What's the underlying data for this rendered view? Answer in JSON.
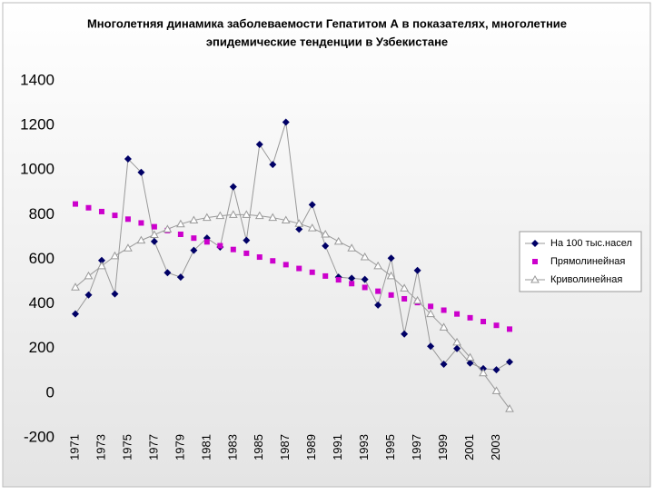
{
  "chart_data": {
    "type": "line",
    "title": [
      "Многолетняя динамика заболеваемости Гепатитом А в показателях, многолетние",
      "эпидемические тенденции в Узбекистане"
    ],
    "categories": [
      "1971",
      null,
      "1973",
      null,
      "1975",
      null,
      "1977",
      null,
      "1979",
      null,
      "1981",
      null,
      "1983",
      null,
      "1985",
      null,
      "1987",
      null,
      "1989",
      null,
      "1991",
      null,
      "1993",
      null,
      "1995",
      null,
      "1997",
      null,
      "1999",
      null,
      "2001",
      null,
      "2003",
      null
    ],
    "series": [
      {
        "name": "На 100 тыс.насел",
        "color": "#000066",
        "marker": "diamond",
        "line": true,
        "line_color": "#999999",
        "values": [
          355,
          440,
          595,
          445,
          1050,
          990,
          680,
          540,
          520,
          640,
          695,
          655,
          925,
          685,
          1115,
          1025,
          1215,
          735,
          845,
          660,
          520,
          515,
          510,
          395,
          605,
          265,
          550,
          210,
          130,
          200,
          135,
          110,
          105,
          140
        ]
      },
      {
        "name": "Прямолинейная",
        "color": "#cc00cc",
        "marker": "square",
        "line": false,
        "line_color": "#cc00cc",
        "values": [
          848,
          831,
          814,
          797,
          780,
          763,
          746,
          729,
          712,
          695,
          678,
          661,
          644,
          627,
          610,
          593,
          576,
          559,
          542,
          525,
          508,
          491,
          474,
          457,
          440,
          423,
          406,
          389,
          372,
          355,
          338,
          321,
          304,
          287
        ]
      },
      {
        "name": "Криволинейная",
        "color": "#999999",
        "marker": "triangle",
        "line": true,
        "line_color": "#999999",
        "values": [
          475,
          525,
          570,
          615,
          650,
          685,
          710,
          735,
          758,
          775,
          787,
          795,
          800,
          800,
          795,
          787,
          775,
          760,
          740,
          712,
          680,
          650,
          610,
          570,
          525,
          470,
          415,
          355,
          295,
          228,
          160,
          90,
          10,
          -70
        ]
      }
    ],
    "ylim": [
      -200,
      1400
    ],
    "yticks": [
      -200,
      0,
      200,
      400,
      600,
      800,
      1000,
      1200,
      1400
    ],
    "grid": false,
    "legend": "right"
  }
}
